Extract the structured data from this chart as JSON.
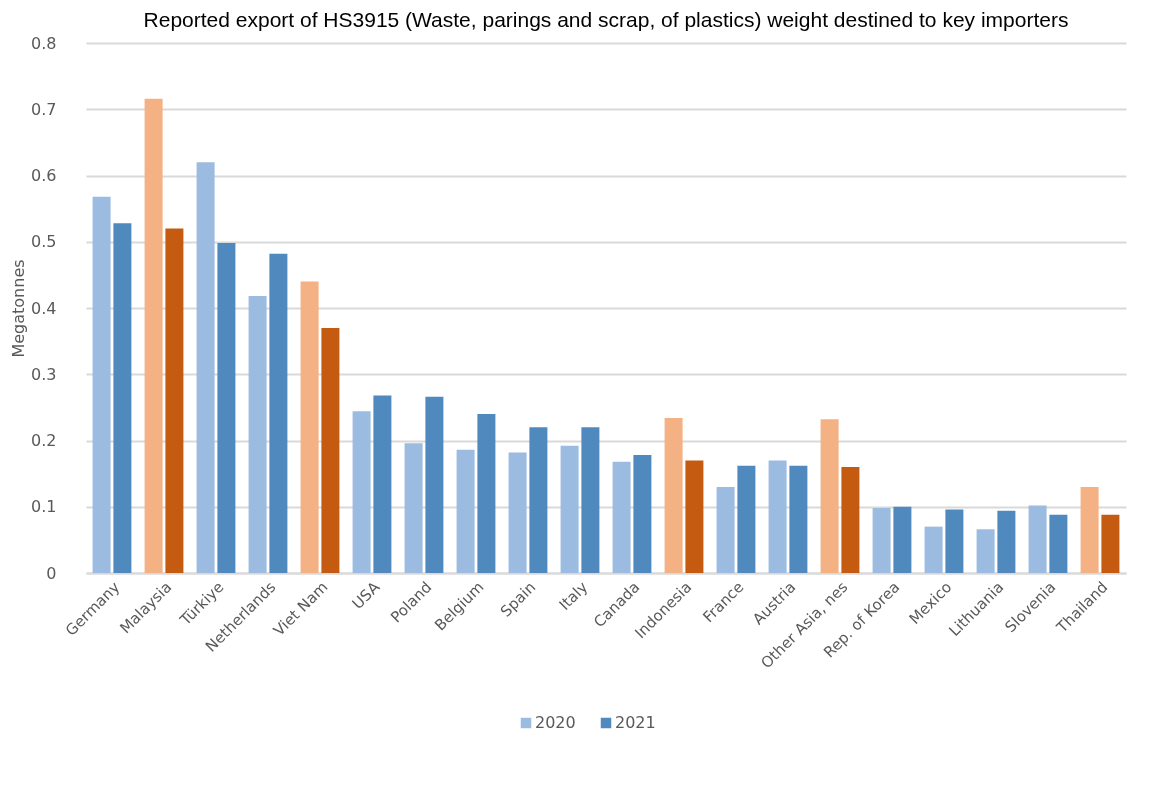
{
  "chart_data": {
    "type": "bar",
    "title": "Reported export of HS3915 (Waste, parings and scrap, of plastics) weight destined to key importers",
    "ylabel": "Megatonnes",
    "categories": [
      "Germany",
      "Malaysia",
      "Türkiye",
      "Netherlands",
      "Viet Nam",
      "USA",
      "Poland",
      "Belgium",
      "Spain",
      "Italy",
      "Canada",
      "Indonesia",
      "France",
      "Austria",
      "Other Asia, nes",
      "Rep. of Korea",
      "Mexico",
      "Lithuania",
      "Slovenia",
      "Thailand"
    ],
    "series": [
      {
        "name": "2020",
        "color": "#9bbbe0",
        "values": [
          0.568,
          0.716,
          0.62,
          0.418,
          0.44,
          0.244,
          0.196,
          0.186,
          0.182,
          0.192,
          0.168,
          0.234,
          0.13,
          0.17,
          0.232,
          0.098,
          0.07,
          0.066,
          0.102,
          0.13
        ],
        "colors": [
          "#9bbbe0",
          "#f4b183",
          "#9bbbe0",
          "#9bbbe0",
          "#f4b183",
          "#9bbbe0",
          "#9bbbe0",
          "#9bbbe0",
          "#9bbbe0",
          "#9bbbe0",
          "#9bbbe0",
          "#f4b183",
          "#9bbbe0",
          "#9bbbe0",
          "#f4b183",
          "#9bbbe0",
          "#9bbbe0",
          "#9bbbe0",
          "#9bbbe0",
          "#f4b183"
        ]
      },
      {
        "name": "2021",
        "color": "#4f89be",
        "values": [
          0.528,
          0.52,
          0.498,
          0.482,
          0.37,
          0.268,
          0.266,
          0.24,
          0.22,
          0.22,
          0.178,
          0.17,
          0.162,
          0.162,
          0.16,
          0.1,
          0.096,
          0.094,
          0.088,
          0.088
        ],
        "colors": [
          "#4f89be",
          "#c55a11",
          "#4f89be",
          "#4f89be",
          "#c55a11",
          "#4f89be",
          "#4f89be",
          "#4f89be",
          "#4f89be",
          "#4f89be",
          "#4f89be",
          "#c55a11",
          "#4f89be",
          "#4f89be",
          "#c55a11",
          "#4f89be",
          "#4f89be",
          "#4f89be",
          "#4f89be",
          "#c55a11"
        ]
      }
    ],
    "ylim": [
      0,
      0.8
    ],
    "yticks": [
      0,
      0.1,
      0.2,
      0.3,
      0.4,
      0.5,
      0.6,
      0.7,
      0.8
    ],
    "grid": "y",
    "legend": "bottom"
  }
}
